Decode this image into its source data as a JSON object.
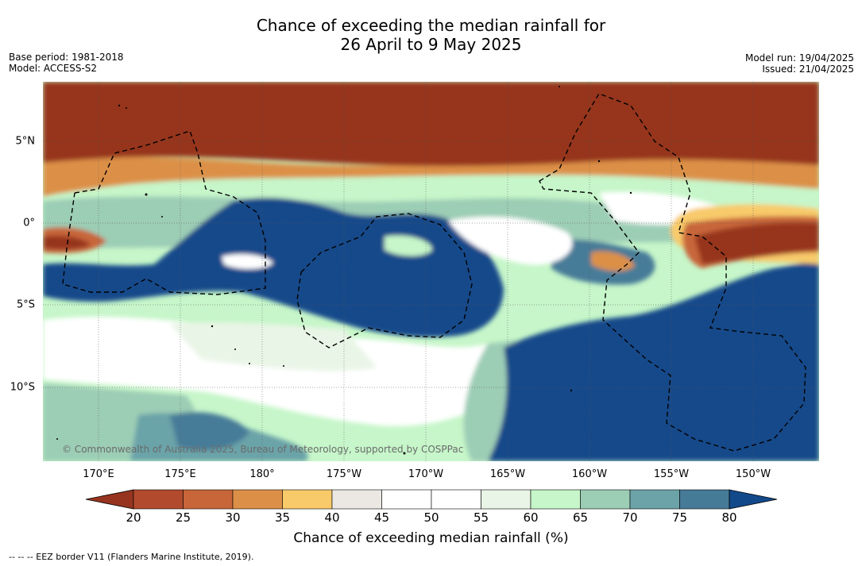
{
  "title": {
    "line1": "Chance of exceeding the median rainfall for",
    "line2": "26 April to 9 May 2025"
  },
  "meta_left": {
    "base_period": "Base period: 1981-2018",
    "model": "Model: ACCESS-S2"
  },
  "meta_right": {
    "model_run": "Model run: 19/04/2025",
    "issued": "Issued: 21/04/2025"
  },
  "map": {
    "lon_labels": [
      "170°E",
      "175°E",
      "180°",
      "175°W",
      "170°W",
      "165°W",
      "160°W",
      "155°W",
      "150°W"
    ],
    "lat_labels": [
      "5°N",
      "0°",
      "5°S",
      "10°S"
    ],
    "copyright": "© Commonwealth of Australia 2025, Bureau of Meteorology, supported by COSPPac"
  },
  "colorbar": {
    "title": "Chance of exceeding median rainfall (%)",
    "ticks": [
      "20",
      "25",
      "30",
      "35",
      "40",
      "45",
      "50",
      "55",
      "60",
      "65",
      "70",
      "75",
      "80"
    ],
    "colors": [
      "#b24a2e",
      "#c8663a",
      "#dc9047",
      "#f8ca6a",
      "#ebe8e3",
      "#ffffff",
      "#ffffff",
      "#e9f5e6",
      "#c6f6c9",
      "#9ccdb5",
      "#6ba3a8",
      "#467b98"
    ],
    "low_color": "#96341f",
    "high_color": "#12498a"
  },
  "legend": {
    "eez": "--  --  -- EEZ border V11 (Flanders Marine Institute, 2019)."
  }
}
